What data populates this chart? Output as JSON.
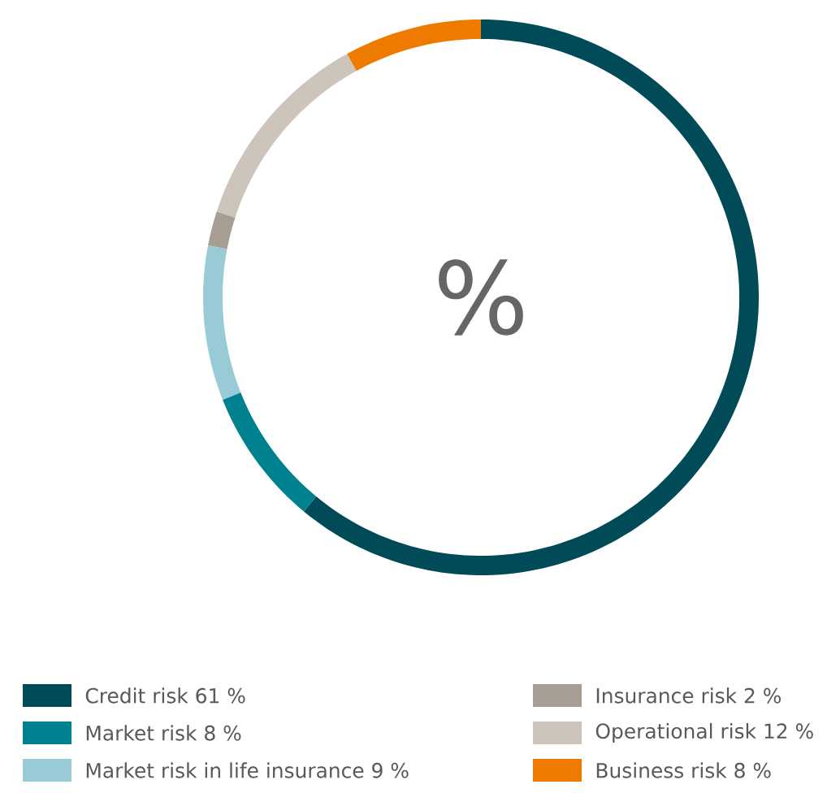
{
  "chart_data": {
    "type": "donut",
    "categories": [
      "Credit risk",
      "Market risk",
      "Market risk in life insurance",
      "Insurance risk",
      "Operational risk",
      "Business risk"
    ],
    "values": [
      61,
      8,
      9,
      2,
      12,
      8
    ],
    "value_labels": [
      "61 %",
      "8 %",
      "9 %",
      "2 %",
      "12 %",
      "8 %"
    ],
    "colors": [
      "#004b57",
      "#00818f",
      "#99cbd6",
      "#a69d93",
      "#cdc5bb",
      "#ee7a00"
    ],
    "annotations": [
      "%"
    ],
    "legend": "bottom"
  }
}
